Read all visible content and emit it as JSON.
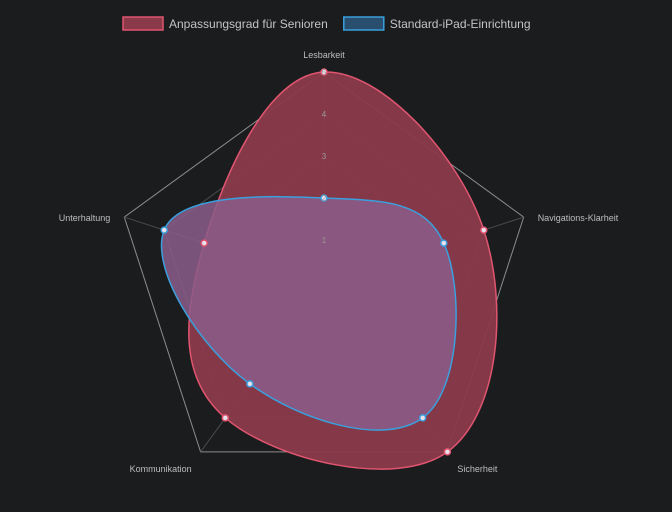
{
  "chart_data": {
    "type": "radar",
    "axes": [
      "Lesbarkeit",
      "Navigations-Klarheit",
      "Sicherheit",
      "Kommunikation",
      "Unterhaltung"
    ],
    "r_range": [
      0,
      5
    ],
    "ticks": [
      1,
      2,
      3,
      4,
      5
    ],
    "grid": true,
    "legend_position": "top",
    "series": [
      {
        "name": "Anpassungsgrad für Senioren",
        "values": [
          5,
          4,
          5,
          4,
          3
        ],
        "color": "#e05570",
        "fill": "#8b3a4a"
      },
      {
        "name": "Standard-iPad-Einrichtung",
        "values": [
          2,
          3,
          4,
          3,
          4
        ],
        "color": "#3aa0de",
        "fill": "#8a5d8a"
      }
    ]
  }
}
